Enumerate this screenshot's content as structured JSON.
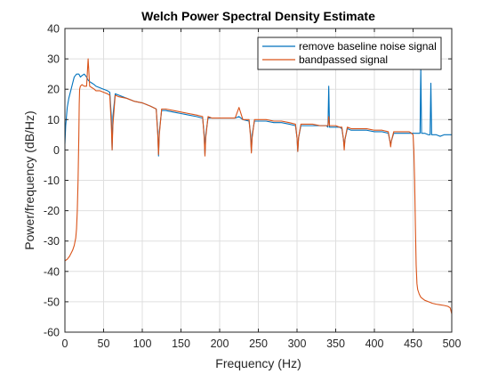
{
  "chart_data": {
    "type": "line",
    "title": "Welch Power Spectral Density Estimate",
    "xlabel": "Frequency (Hz)",
    "ylabel": "Power/frequency (dB/Hz)",
    "xlim": [
      0,
      500
    ],
    "ylim": [
      -60,
      40
    ],
    "xticks": [
      0,
      50,
      100,
      150,
      200,
      250,
      300,
      350,
      400,
      450,
      500
    ],
    "yticks": [
      -60,
      -50,
      -40,
      -30,
      -20,
      -10,
      0,
      10,
      20,
      30,
      40
    ],
    "grid": true,
    "legend_position": "top-right",
    "series": [
      {
        "name": "remove baseline noise signal",
        "color": "#0072BD",
        "x": [
          0,
          1,
          3,
          5,
          8,
          10,
          12,
          15,
          18,
          20,
          22,
          25,
          28,
          30,
          32,
          35,
          38,
          40,
          45,
          50,
          55,
          58,
          60,
          61,
          62,
          65,
          70,
          80,
          90,
          100,
          110,
          118,
          120,
          121,
          122,
          125,
          130,
          140,
          150,
          160,
          170,
          178,
          180,
          181,
          182,
          185,
          190,
          200,
          210,
          220,
          225,
          230,
          238,
          240,
          241,
          242,
          245,
          250,
          260,
          270,
          280,
          290,
          298,
          300,
          301,
          302,
          305,
          310,
          320,
          330,
          338,
          340,
          341,
          342,
          345,
          350,
          355,
          358,
          360,
          361,
          362,
          365,
          370,
          380,
          390,
          400,
          410,
          418,
          420,
          421,
          422,
          425,
          430,
          440,
          450,
          455,
          459,
          460,
          461,
          462,
          465,
          470,
          472,
          473,
          474,
          475,
          480,
          485,
          490,
          495,
          500
        ],
        "y": [
          2,
          8,
          14,
          17,
          20,
          22,
          24,
          25,
          25,
          24,
          24.5,
          25,
          24,
          23,
          22.5,
          22,
          21.5,
          21,
          20.5,
          20,
          19.5,
          19,
          11,
          0,
          11,
          18.5,
          18,
          17,
          16,
          15.5,
          14.5,
          13.5,
          6,
          -2,
          6,
          13,
          13,
          12.5,
          12,
          11.5,
          11,
          10.5,
          5,
          -1.5,
          5,
          10.5,
          10.5,
          10.5,
          10.5,
          10.5,
          11,
          10,
          9.5,
          5,
          -0.5,
          5,
          9.5,
          9.5,
          9.5,
          9,
          9,
          8.5,
          8,
          4,
          -0.5,
          4,
          8,
          8,
          8,
          8,
          8,
          7.5,
          21,
          7.5,
          7.5,
          7.5,
          7.5,
          7,
          3.5,
          1,
          3.5,
          7,
          6.5,
          6.5,
          6.5,
          6,
          6,
          5.5,
          3,
          2,
          3,
          5.5,
          5.5,
          5.5,
          5.5,
          5.5,
          5.5,
          27,
          5.5,
          5.5,
          5.5,
          5,
          5,
          22,
          5,
          5,
          5,
          4.5,
          5,
          5,
          5
        ]
      },
      {
        "name": "bandpassed signal",
        "color": "#D95319",
        "x": [
          0,
          3,
          6,
          8,
          10,
          12,
          14,
          15,
          16,
          17,
          18,
          18.5,
          19,
          20,
          22,
          25,
          28,
          30,
          32,
          35,
          38,
          40,
          45,
          50,
          55,
          58,
          60,
          61,
          62,
          65,
          70,
          80,
          90,
          100,
          110,
          118,
          120,
          121,
          122,
          125,
          130,
          140,
          150,
          160,
          170,
          178,
          180,
          181,
          182,
          185,
          190,
          200,
          210,
          220,
          225,
          230,
          238,
          240,
          241,
          242,
          245,
          250,
          260,
          270,
          280,
          290,
          298,
          300,
          301,
          302,
          305,
          310,
          320,
          330,
          338,
          340,
          341,
          342,
          345,
          350,
          355,
          358,
          360,
          361,
          362,
          365,
          370,
          380,
          390,
          400,
          410,
          418,
          420,
          421,
          422,
          425,
          430,
          440,
          445,
          448,
          450,
          451,
          452,
          453,
          454,
          455,
          456,
          458,
          460,
          465,
          470,
          475,
          480,
          485,
          490,
          495,
          498,
          500
        ],
        "y": [
          -36.5,
          -36,
          -35,
          -34,
          -33,
          -31.5,
          -29,
          -26,
          -20,
          -10,
          5,
          15,
          20,
          21,
          21.5,
          21,
          21,
          30,
          21,
          20.5,
          20,
          19.5,
          19.5,
          19,
          18.5,
          18,
          8,
          0,
          8,
          18,
          17.5,
          17,
          16,
          15.5,
          14.5,
          13.5,
          5,
          -1.5,
          5,
          13.5,
          13.5,
          13,
          12.5,
          12,
          11.5,
          11,
          4,
          -2,
          4,
          11,
          10.5,
          10.5,
          10.5,
          10.5,
          14,
          10,
          10,
          4,
          -1,
          4,
          10,
          10,
          10,
          9.5,
          9.5,
          9,
          8.5,
          4,
          -0.5,
          4,
          8.5,
          8.5,
          8.5,
          8,
          8,
          8,
          11,
          8,
          8,
          8,
          7.5,
          7.5,
          3.5,
          0,
          3.5,
          7.5,
          7,
          7,
          7,
          6.5,
          6.5,
          6,
          3,
          1,
          3,
          6,
          6,
          6,
          6,
          5.5,
          5,
          0,
          -10,
          -25,
          -38,
          -44,
          -46,
          -47.5,
          -48.5,
          -49.5,
          -50,
          -50.5,
          -50.8,
          -51,
          -51.2,
          -51.5,
          -52,
          -54
        ]
      }
    ]
  }
}
